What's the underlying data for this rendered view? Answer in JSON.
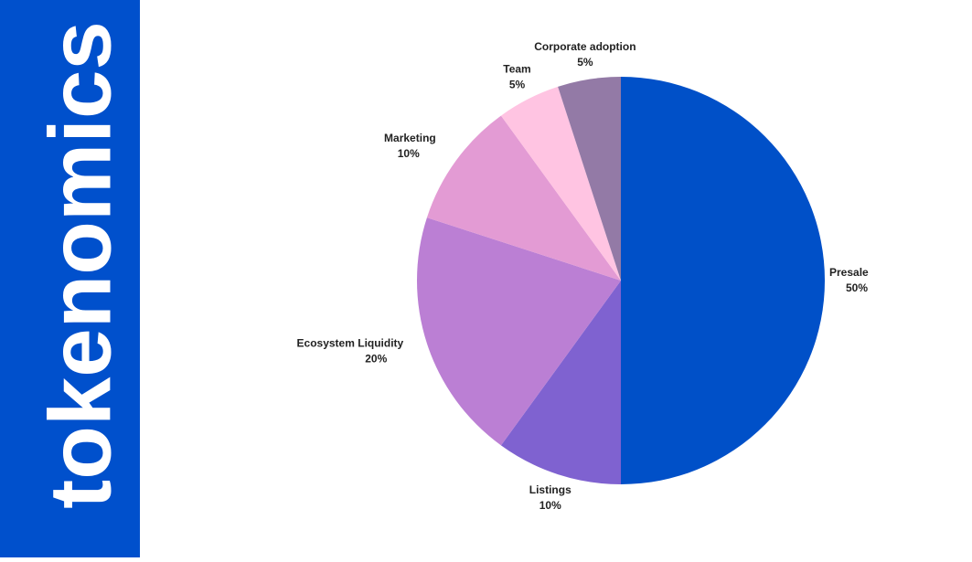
{
  "sidebar": {
    "title": "tokenomics"
  },
  "chart_data": {
    "type": "pie",
    "categories": [
      "Presale",
      "Listings",
      "Ecosystem Liquidity",
      "Marketing",
      "Team",
      "Corporate adoption"
    ],
    "values": [
      50,
      10,
      20,
      10,
      5,
      5
    ],
    "value_labels": [
      "50%",
      "10%",
      "20%",
      "10%",
      "5%",
      "5%"
    ],
    "colors": [
      "#0050c8",
      "#7f62d0",
      "#bb7fd4",
      "#e39bd4",
      "#ffc4e2",
      "#937aa6"
    ]
  }
}
